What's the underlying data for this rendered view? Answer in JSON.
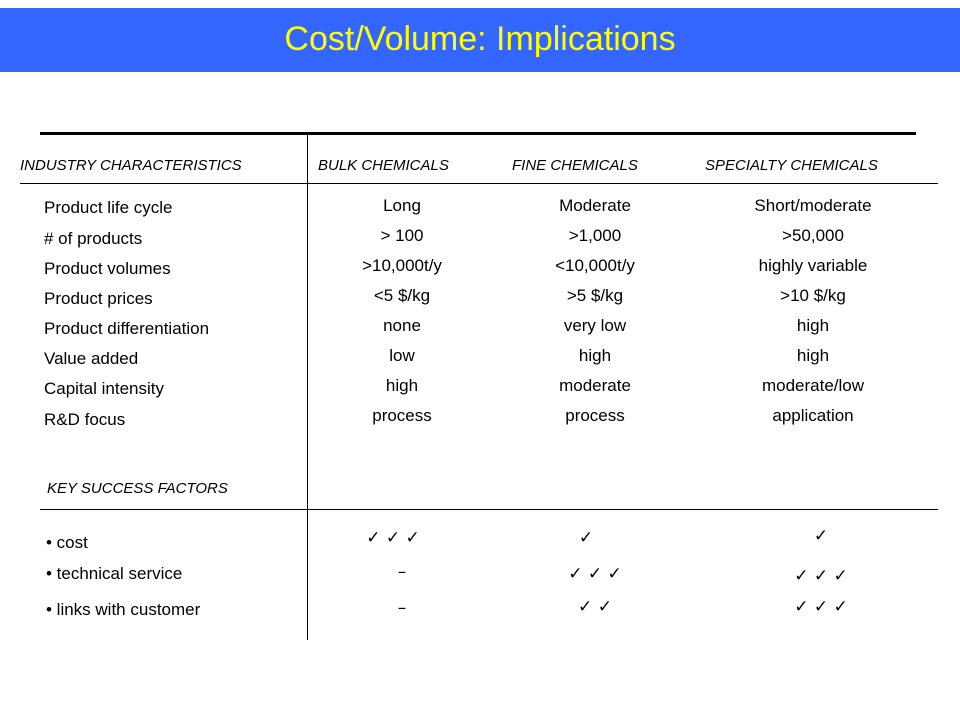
{
  "title": "Cost/Volume: Implications",
  "colors": {
    "title_bar": "#3366ff",
    "title_text": "#ffff00"
  },
  "headers": [
    "INDUSTRY CHARACTERISTICS",
    "BULK CHEMICALS",
    "FINE CHEMICALS",
    "SPECIALTY CHEMICALS"
  ],
  "rows": [
    {
      "label": "Product life cycle",
      "bulk": "Long",
      "fine": "Moderate",
      "specialty": "Short/moderate"
    },
    {
      "label": "# of products",
      "bulk": "> 100",
      "fine": ">1,000",
      "specialty": ">50,000"
    },
    {
      "label": "Product volumes",
      "bulk": ">10,000t/y",
      "fine": "<10,000t/y",
      "specialty": "highly variable"
    },
    {
      "label": "Product prices",
      "bulk": "<5 $/kg",
      "fine": ">5 $/kg",
      "specialty": ">10 $/kg"
    },
    {
      "label": "Product differentiation",
      "bulk": "none",
      "fine": "very low",
      "specialty": "high"
    },
    {
      "label": "Value added",
      "bulk": "low",
      "fine": "high",
      "specialty": "high"
    },
    {
      "label": "Capital intensity",
      "bulk": "high",
      "fine": "moderate",
      "specialty": "moderate/low"
    },
    {
      "label": "R&D focus",
      "bulk": "process",
      "fine": "process",
      "specialty": "application"
    }
  ],
  "ksf_header": "KEY SUCCESS FACTORS",
  "ksf": [
    {
      "label": "• cost",
      "bulk": "✓  ✓  ✓",
      "fine": "✓",
      "specialty": "✓"
    },
    {
      "label": "• technical service",
      "bulk": "–",
      "fine": "✓  ✓  ✓",
      "specialty": "✓  ✓  ✓"
    },
    {
      "label": "• links with customer",
      "bulk": "–",
      "fine": "✓  ✓",
      "specialty": "✓  ✓  ✓"
    }
  ]
}
